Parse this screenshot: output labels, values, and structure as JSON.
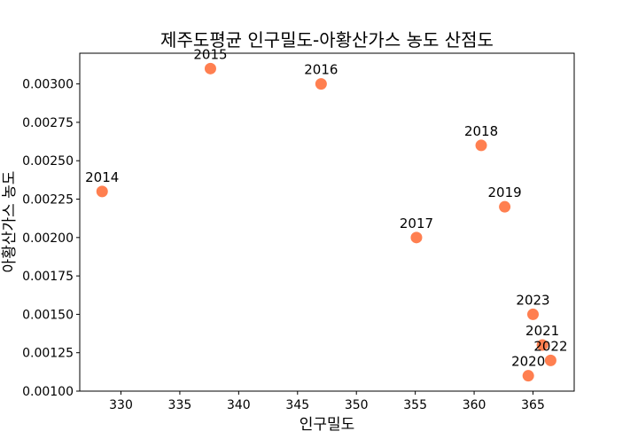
{
  "chart_data": {
    "type": "scatter",
    "title": "제주도평균 인구밀도-아황산가스 농도 산점도",
    "xlabel": "인구밀도",
    "ylabel": "아황산가스 농도",
    "xlim": [
      326.5,
      368.5
    ],
    "ylim": [
      0.001,
      0.0032
    ],
    "xticks": [
      "330",
      "335",
      "340",
      "345",
      "350",
      "355",
      "360",
      "365"
    ],
    "yticks": [
      "0.00100",
      "0.00125",
      "0.00150",
      "0.00175",
      "0.00200",
      "0.00225",
      "0.00250",
      "0.00275",
      "0.00300"
    ],
    "grid": false,
    "marker_color": "#FF7F50",
    "points": [
      {
        "label": "2014",
        "x": 328.4,
        "y": 0.0023
      },
      {
        "label": "2015",
        "x": 337.6,
        "y": 0.0031
      },
      {
        "label": "2016",
        "x": 347.0,
        "y": 0.003
      },
      {
        "label": "2017",
        "x": 355.1,
        "y": 0.002
      },
      {
        "label": "2018",
        "x": 360.6,
        "y": 0.0026
      },
      {
        "label": "2019",
        "x": 362.6,
        "y": 0.0022
      },
      {
        "label": "2020",
        "x": 364.6,
        "y": 0.0011
      },
      {
        "label": "2021",
        "x": 365.8,
        "y": 0.0013
      },
      {
        "label": "2022",
        "x": 366.5,
        "y": 0.0012
      },
      {
        "label": "2023",
        "x": 365.0,
        "y": 0.0015
      }
    ]
  }
}
